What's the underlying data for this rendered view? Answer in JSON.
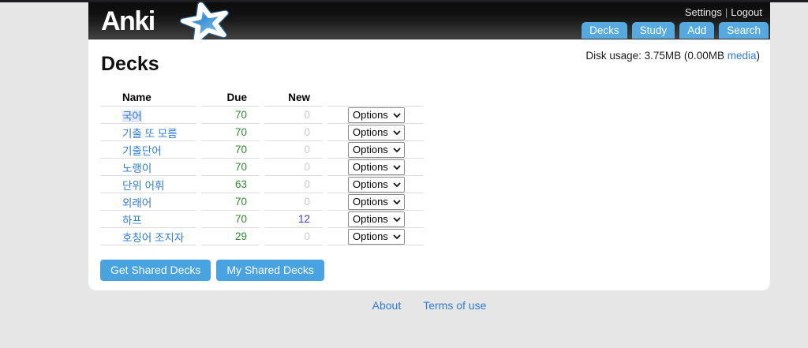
{
  "colors": {
    "page_bg": "#e7e6e6",
    "header_dark": "#141414",
    "tab_blue": "#56a9de",
    "button_blue": "#48a3e0",
    "link_blue": "#2e7cd6",
    "due_green": "#2e8b2e",
    "new_blue": "#3c3ccd",
    "zero_gray": "#cacaca"
  },
  "header": {
    "logo_text": "Anki",
    "logo_star_icon": "anki-star",
    "settings_label": "Settings",
    "separator": "|",
    "logout_label": "Logout",
    "tabs": [
      {
        "label": "Decks"
      },
      {
        "label": "Study"
      },
      {
        "label": "Add"
      },
      {
        "label": "Search"
      }
    ]
  },
  "main": {
    "title": "Decks",
    "disk_usage": {
      "prefix": "Disk usage: 3.75MB (0.00MB ",
      "media_link": "media",
      "suffix": ")"
    },
    "deck_table": {
      "columns": {
        "name": "Name",
        "due": "Due",
        "new": "New"
      },
      "options_label": "Options",
      "rows": [
        {
          "name": "국어",
          "due": "70",
          "new": "0",
          "selected": true
        },
        {
          "name": "기출 또 모름",
          "due": "70",
          "new": "0"
        },
        {
          "name": "기출단어",
          "due": "70",
          "new": "0"
        },
        {
          "name": "노랭이",
          "due": "70",
          "new": "0"
        },
        {
          "name": "단위 어휘",
          "due": "63",
          "new": "0"
        },
        {
          "name": "외래어",
          "due": "70",
          "new": "0"
        },
        {
          "name": "하프",
          "due": "70",
          "new": "12"
        },
        {
          "name": "호칭어 조지자",
          "due": "29",
          "new": "0"
        }
      ]
    },
    "buttons": [
      {
        "label": "Get Shared Decks"
      },
      {
        "label": "My Shared Decks"
      }
    ]
  },
  "footer": {
    "links": [
      {
        "label": "About"
      },
      {
        "label": "Terms of use"
      }
    ]
  }
}
